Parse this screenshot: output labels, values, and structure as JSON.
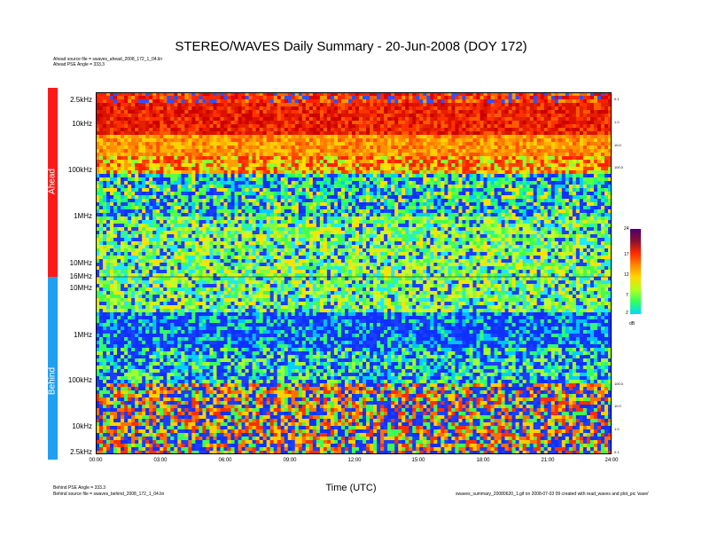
{
  "title": "STEREO/WAVES Daily Summary - 20-Jun-2008 (DOY 172)",
  "header_notes": [
    "Ahead source file = swaves_ahead_2008_172_1_04.lin",
    "Ahead PSE Angle = 333.3"
  ],
  "footer_notes_left": [
    "Behind PSE Angle = 333.3",
    "Behind source file = swaves_behind_2008_172_1_04.lin"
  ],
  "footer_note_right": "swaves_summary_20080620_1.gif on 2008-07-03 09 created with read_waves and plot_pic 'wave'",
  "colors": {
    "ahead": "#ff1a1a",
    "behind": "#1fa0f0"
  },
  "chart_data": {
    "type": "heatmap",
    "xlabel": "Time (UTC)",
    "x_ticks": [
      "00:00",
      "03:00",
      "06:00",
      "09:00",
      "12:00",
      "15:00",
      "18:00",
      "21:00",
      "24:00"
    ],
    "x_range_hours": [
      0,
      24
    ],
    "colorbar": {
      "unit": "dB",
      "ticks": [
        "24",
        "17",
        "12",
        "7",
        "2"
      ],
      "range": [
        2,
        24
      ]
    },
    "panels": [
      {
        "name": "Ahead",
        "y_ticks": [
          "2.5kHz",
          "10kHz",
          "100kHz",
          "1MHz",
          "10MHz",
          "16MHz"
        ],
        "right_ticks": [
          "0.1",
          "1.0",
          "10.0",
          "100.0"
        ]
      },
      {
        "name": "Behind",
        "y_ticks": [
          "10MHz",
          "1MHz",
          "100kHz",
          "10kHz",
          "2.5kHz"
        ],
        "right_ticks": [
          "100.0",
          "10.0",
          "1.0",
          "0.1"
        ]
      }
    ],
    "bands_top_to_bottom": [
      {
        "frac_from": 0.0,
        "frac_to": 0.03,
        "palette": "red"
      },
      {
        "frac_from": 0.03,
        "frac_to": 0.12,
        "palette": "deepred"
      },
      {
        "frac_from": 0.12,
        "frac_to": 0.18,
        "palette": "orange"
      },
      {
        "frac_from": 0.18,
        "frac_to": 0.23,
        "palette": "redyellow"
      },
      {
        "frac_from": 0.23,
        "frac_to": 0.34,
        "palette": "mixedblue"
      },
      {
        "frac_from": 0.34,
        "frac_to": 0.61,
        "palette": "green"
      },
      {
        "frac_from": 0.61,
        "frac_to": 0.71,
        "palette": "blue"
      },
      {
        "frac_from": 0.71,
        "frac_to": 0.8,
        "palette": "bluegreen"
      },
      {
        "frac_from": 0.8,
        "frac_to": 1.0,
        "palette": "lowmix"
      }
    ]
  }
}
